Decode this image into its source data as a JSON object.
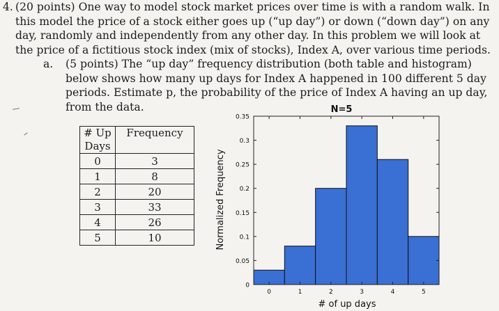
{
  "problem": {
    "number": "4.",
    "text": "(20 points) One way to model stock market prices over time is with a random walk. In this model the price of a stock either goes up (“up day”) or down (“down day”) on any day, randomly and independently from any other day. In this problem we will look at the price of a fictitious stock index (mix of stocks), Index A, over various time periods."
  },
  "part_a": {
    "label": "a.",
    "text": "(5 points) The “up day” frequency distribution (both table and histogram) below shows how many up days for Index A happened in 100 different 5 day periods. Estimate p, the probability of the price of Index A having an up day, from the data."
  },
  "table": {
    "headers": [
      "# Up Days",
      "Frequency"
    ],
    "rows": [
      {
        "up_days": "0",
        "frequency": "3"
      },
      {
        "up_days": "1",
        "frequency": "8"
      },
      {
        "up_days": "2",
        "frequency": "20"
      },
      {
        "up_days": "3",
        "frequency": "33"
      },
      {
        "up_days": "4",
        "frequency": "26"
      },
      {
        "up_days": "5",
        "frequency": "10"
      }
    ]
  },
  "chart_data": {
    "type": "bar",
    "title": "N=5",
    "xlabel": "# of up days",
    "ylabel": "Normalized Frequency",
    "categories": [
      0,
      1,
      2,
      3,
      4,
      5
    ],
    "values": [
      0.03,
      0.08,
      0.2,
      0.33,
      0.26,
      0.1
    ],
    "xlim": [
      -0.5,
      5.5
    ],
    "ylim": [
      0,
      0.35
    ],
    "yticks": [
      0,
      0.05,
      0.1,
      0.15,
      0.2,
      0.25,
      0.3,
      0.35
    ],
    "yticklabels": [
      "0",
      "0.05",
      "0.1",
      "0.15",
      "0.2",
      "0.25",
      "0.3",
      "0.35"
    ],
    "xticklabels": [
      "0",
      "1",
      "2",
      "3",
      "4",
      "5"
    ],
    "bar_color": "#3a6fd4",
    "grid": false
  }
}
